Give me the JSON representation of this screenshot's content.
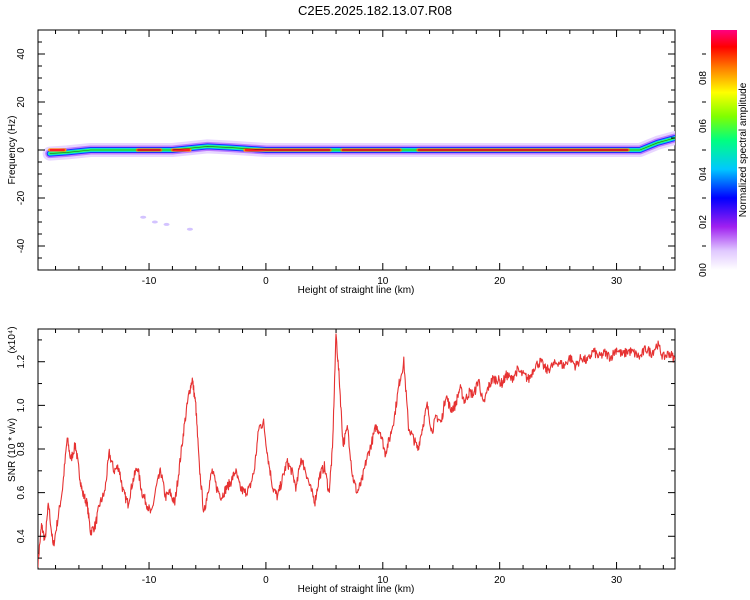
{
  "title": "C2E5.2025.182.13.07.R08",
  "chart_data": [
    {
      "type": "heatmap",
      "xlabel": "Height of straight line (km)",
      "ylabel": "Frequency (Hz)",
      "xlim": [
        -19.5,
        35
      ],
      "ylim": [
        -50,
        50
      ],
      "xticks": [
        -10,
        0,
        10,
        20,
        30
      ],
      "yticks": [
        -40,
        -20,
        0,
        20,
        40
      ],
      "colorbar": {
        "label": "Normalized spectral amplitude",
        "range": [
          0,
          1
        ],
        "ticks": [
          "0.0",
          "0.2",
          "0.4",
          "0.6",
          "0.8"
        ]
      },
      "ridge": [
        {
          "x": -18.5,
          "y": -1.5
        },
        {
          "x": -17,
          "y": -1
        },
        {
          "x": -15,
          "y": 0
        },
        {
          "x": -12,
          "y": 0
        },
        {
          "x": -8,
          "y": 0
        },
        {
          "x": -5,
          "y": 1.5
        },
        {
          "x": -3,
          "y": 1
        },
        {
          "x": 0,
          "y": 0
        },
        {
          "x": 10,
          "y": 0
        },
        {
          "x": 20,
          "y": 0
        },
        {
          "x": 30,
          "y": 0
        },
        {
          "x": 32,
          "y": 0
        },
        {
          "x": 33.5,
          "y": 3
        },
        {
          "x": 35,
          "y": 5
        }
      ],
      "strong_segments": [
        [
          -18.5,
          -17.2
        ],
        [
          -11,
          -9
        ],
        [
          -8,
          -6.5
        ],
        [
          -1.8,
          5.5
        ],
        [
          6.5,
          11.5
        ],
        [
          13,
          31
        ]
      ],
      "faint_points": [
        {
          "x": -10.5,
          "y": -28
        },
        {
          "x": -9.5,
          "y": -30
        },
        {
          "x": -8.5,
          "y": -31
        },
        {
          "x": -6.5,
          "y": -33
        }
      ]
    },
    {
      "type": "line",
      "xlabel": "Height of straight line (km)",
      "ylabel": "SNR (10 * v/v)",
      "multiplier": "(x10⁴)",
      "xlim": [
        -19.5,
        35
      ],
      "ylim": [
        0.25,
        1.35
      ],
      "xticks": [
        -10,
        0,
        10,
        20,
        30
      ],
      "yticks": [
        "0.4",
        "0.6",
        "0.8",
        "1.0",
        "1.2"
      ],
      "series": [
        {
          "color": "#e63232",
          "x": [
            -19.5,
            -19.2,
            -18.9,
            -18.6,
            -18.2,
            -17.8,
            -17.4,
            -17,
            -16.7,
            -16.3,
            -16,
            -15.7,
            -15.3,
            -15,
            -14.6,
            -14.2,
            -13.8,
            -13.4,
            -13,
            -12.6,
            -12.2,
            -11.8,
            -11.4,
            -11,
            -10.6,
            -10.2,
            -9.8,
            -9.4,
            -9,
            -8.6,
            -8.2,
            -7.8,
            -7.4,
            -7,
            -6.6,
            -6.3,
            -6,
            -5.7,
            -5.3,
            -5,
            -4.6,
            -4.2,
            -3.8,
            -3.4,
            -3,
            -2.6,
            -2.2,
            -1.8,
            -1.4,
            -1,
            -0.6,
            -0.2,
            0.2,
            0.6,
            1,
            1.4,
            1.8,
            2.2,
            2.6,
            3,
            3.4,
            3.8,
            4.2,
            4.6,
            5,
            5.4,
            5.7,
            6,
            6.3,
            6.6,
            7,
            7.4,
            7.8,
            8.2,
            8.6,
            9,
            9.4,
            9.8,
            10.2,
            10.6,
            11,
            11.4,
            11.8,
            12.2,
            12.6,
            13,
            13.4,
            13.8,
            14.2,
            14.6,
            15,
            15.4,
            15.8,
            16.2,
            16.6,
            17,
            17.4,
            17.8,
            18.2,
            18.6,
            19,
            19.4,
            19.8,
            20.2,
            20.6,
            21,
            21.5,
            22,
            22.5,
            23,
            23.5,
            24,
            24.5,
            25,
            25.5,
            26,
            26.5,
            27,
            27.5,
            28,
            28.5,
            29,
            29.5,
            30,
            30.5,
            31,
            31.5,
            32,
            32.5,
            33,
            33.5,
            34,
            34.5,
            35
          ],
          "y": [
            0.28,
            0.45,
            0.38,
            0.55,
            0.35,
            0.48,
            0.62,
            0.85,
            0.75,
            0.82,
            0.7,
            0.6,
            0.55,
            0.42,
            0.45,
            0.55,
            0.6,
            0.78,
            0.7,
            0.72,
            0.6,
            0.55,
            0.65,
            0.72,
            0.6,
            0.55,
            0.5,
            0.62,
            0.7,
            0.58,
            0.6,
            0.55,
            0.72,
            0.9,
            1.05,
            1.12,
            1.0,
            0.72,
            0.5,
            0.6,
            0.7,
            0.62,
            0.58,
            0.62,
            0.65,
            0.7,
            0.62,
            0.6,
            0.62,
            0.7,
            0.9,
            0.92,
            0.75,
            0.62,
            0.58,
            0.66,
            0.74,
            0.7,
            0.62,
            0.76,
            0.7,
            0.62,
            0.56,
            0.68,
            0.72,
            0.6,
            0.8,
            1.33,
            1.1,
            0.82,
            0.9,
            0.68,
            0.6,
            0.65,
            0.75,
            0.82,
            0.9,
            0.88,
            0.78,
            0.85,
            0.95,
            1.1,
            1.2,
            0.9,
            0.85,
            0.8,
            0.9,
            1.0,
            0.88,
            0.95,
            0.92,
            1.05,
            0.98,
            1.0,
            1.08,
            1.02,
            1.06,
            1.05,
            1.12,
            1.0,
            1.08,
            1.12,
            1.12,
            1.1,
            1.14,
            1.12,
            1.16,
            1.14,
            1.12,
            1.18,
            1.2,
            1.16,
            1.18,
            1.2,
            1.18,
            1.22,
            1.18,
            1.22,
            1.2,
            1.25,
            1.22,
            1.24,
            1.22,
            1.26,
            1.23,
            1.25,
            1.24,
            1.22,
            1.26,
            1.24,
            1.28,
            1.22,
            1.24,
            1.21
          ]
        }
      ]
    }
  ]
}
